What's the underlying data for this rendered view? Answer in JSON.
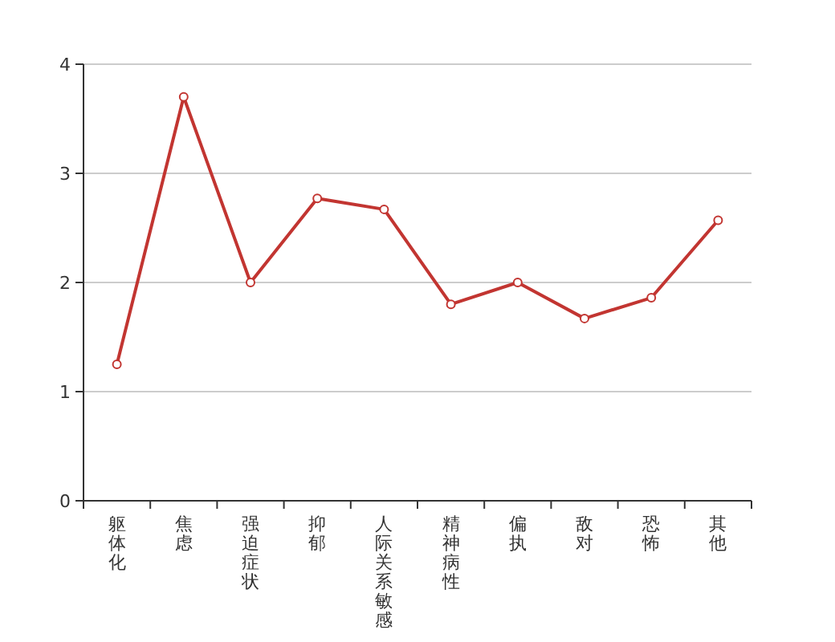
{
  "chart_data": {
    "type": "line",
    "categories": [
      "躯体化",
      "焦虑",
      "强迫症状",
      "抑郁",
      "人际关系敏感",
      "精神病性",
      "偏执",
      "敌对",
      "恐怖",
      "其他"
    ],
    "series": [
      {
        "color": "#c23531",
        "values": [
          1.25,
          3.7,
          2.0,
          2.77,
          2.67,
          1.8,
          2.0,
          1.67,
          1.86,
          2.57
        ]
      }
    ],
    "ylim": [
      0,
      4
    ],
    "yticks": [
      0,
      1,
      2,
      3,
      4
    ],
    "grid": "y",
    "marker": "circle",
    "line_style": "solid"
  }
}
